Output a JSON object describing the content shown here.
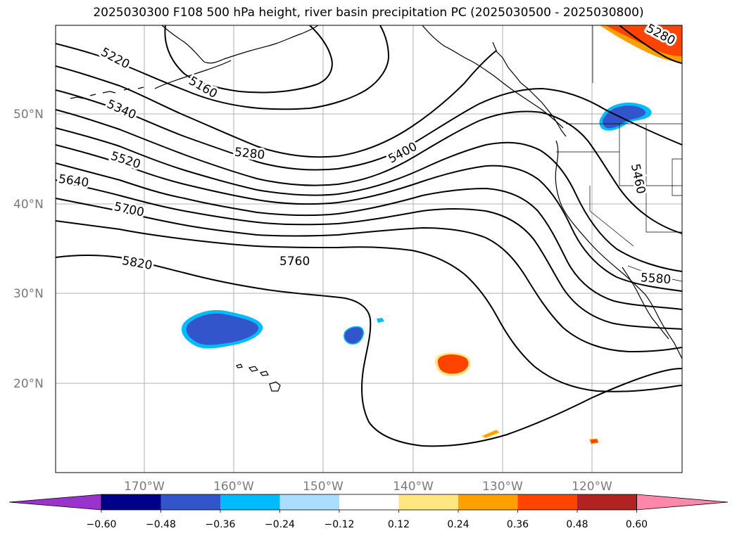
{
  "title": "2025030300 F108 500 hPa height, river basin precipitation PC (2025030500 - 2025030800)",
  "map": {
    "region": "North Pacific / US West Coast",
    "lat_labels": [
      "50°N",
      "40°N",
      "30°N",
      "20°N"
    ],
    "lon_labels": [
      "170°W",
      "160°W",
      "150°W",
      "140°W",
      "130°W",
      "120°W"
    ],
    "contour_labels": [
      "5220",
      "5160",
      "5340",
      "5280",
      "5520",
      "5400",
      "5640",
      "5700",
      "5820",
      "5760",
      "5460",
      "5580",
      "5280"
    ],
    "grid": true,
    "colors": {
      "contour": "#000000",
      "coast": "#000000",
      "grid": "#b0b0b0",
      "tick_label": "#7a7a7a"
    }
  },
  "colorbar": {
    "ticks": [
      "−0.60",
      "−0.48",
      "−0.36",
      "−0.24",
      "−0.12",
      "0.12",
      "0.24",
      "0.36",
      "0.48",
      "0.60"
    ],
    "colors": [
      "#9933cc",
      "#000088",
      "#3355cc",
      "#00bbff",
      "#aaddff",
      "#ffffff",
      "#ffe680",
      "#ffa000",
      "#ff4400",
      "#b22222",
      "#ff88aa"
    ]
  }
}
